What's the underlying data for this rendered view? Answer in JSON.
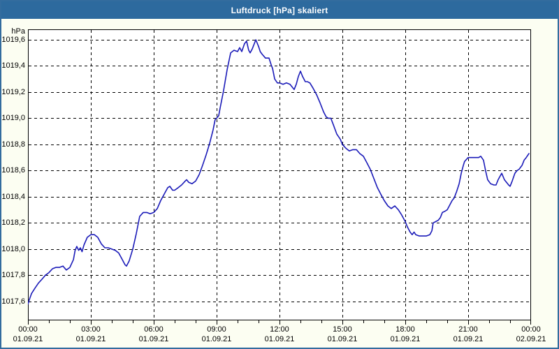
{
  "window": {
    "title": "Luftdruck [hPa] skaliert"
  },
  "colors": {
    "titlebar_bg": "#2D6A9E",
    "titlebar_text": "#FFFFFF",
    "window_border": "#336C9E",
    "content_bg": "#FCFEF2",
    "plot_bg": "#FFFFFF",
    "grid": "#000000",
    "axis": "#000000",
    "line": "#1A1AB8",
    "label_text": "#000000"
  },
  "chart_data": {
    "type": "line",
    "title": "Luftdruck [hPa] skaliert",
    "y_unit": "hPa",
    "grid": "dashed",
    "legend": "none",
    "y_range": [
      1017.455,
      1019.68
    ],
    "x_range_hours": [
      0,
      24
    ],
    "x_minor_tick_every_hours": 1,
    "y_ticks": [
      {
        "value": 1019.6,
        "label": "1019,6"
      },
      {
        "value": 1019.4,
        "label": "1019,4"
      },
      {
        "value": 1019.2,
        "label": "1019,2"
      },
      {
        "value": 1019.0,
        "label": "1019,0"
      },
      {
        "value": 1018.8,
        "label": "1018,8"
      },
      {
        "value": 1018.6,
        "label": "1018,6"
      },
      {
        "value": 1018.4,
        "label": "1018,4"
      },
      {
        "value": 1018.2,
        "label": "1018,2"
      },
      {
        "value": 1018.0,
        "label": "1018,0"
      },
      {
        "value": 1017.8,
        "label": "1017,8"
      },
      {
        "value": 1017.6,
        "label": "1017,6"
      }
    ],
    "x_ticks": [
      {
        "hour": 0,
        "time": "00:00",
        "date": "01.09.21"
      },
      {
        "hour": 3,
        "time": "03:00",
        "date": "01.09.21"
      },
      {
        "hour": 6,
        "time": "06:00",
        "date": "01.09.21"
      },
      {
        "hour": 9,
        "time": "09:00",
        "date": "01.09.21"
      },
      {
        "hour": 12,
        "time": "12:00",
        "date": "01.09.21"
      },
      {
        "hour": 15,
        "time": "15:00",
        "date": "01.09.21"
      },
      {
        "hour": 18,
        "time": "18:00",
        "date": "01.09.21"
      },
      {
        "hour": 21,
        "time": "21:00",
        "date": "01.09.21"
      },
      {
        "hour": 24,
        "time": "00:00",
        "date": "02.09.21"
      }
    ],
    "series": [
      {
        "name": "Luftdruck",
        "points": [
          [
            0.0,
            1017.58
          ],
          [
            0.08,
            1017.62
          ],
          [
            0.17,
            1017.66
          ],
          [
            0.33,
            1017.7
          ],
          [
            0.5,
            1017.74
          ],
          [
            0.67,
            1017.77
          ],
          [
            0.83,
            1017.8
          ],
          [
            1.0,
            1017.82
          ],
          [
            1.17,
            1017.85
          ],
          [
            1.33,
            1017.86
          ],
          [
            1.5,
            1017.86
          ],
          [
            1.67,
            1017.87
          ],
          [
            1.83,
            1017.84
          ],
          [
            2.0,
            1017.86
          ],
          [
            2.17,
            1017.92
          ],
          [
            2.25,
            1017.99
          ],
          [
            2.33,
            1018.02
          ],
          [
            2.42,
            1017.99
          ],
          [
            2.5,
            1018.01
          ],
          [
            2.58,
            1017.98
          ],
          [
            2.67,
            1018.03
          ],
          [
            2.83,
            1018.09
          ],
          [
            3.0,
            1018.11
          ],
          [
            3.17,
            1018.11
          ],
          [
            3.33,
            1018.09
          ],
          [
            3.5,
            1018.04
          ],
          [
            3.67,
            1018.01
          ],
          [
            3.83,
            1018.01
          ],
          [
            4.0,
            1018.0
          ],
          [
            4.17,
            1017.99
          ],
          [
            4.33,
            1017.97
          ],
          [
            4.5,
            1017.92
          ],
          [
            4.63,
            1017.88
          ],
          [
            4.7,
            1017.87
          ],
          [
            4.83,
            1017.91
          ],
          [
            5.0,
            1018.0
          ],
          [
            5.17,
            1018.12
          ],
          [
            5.33,
            1018.25
          ],
          [
            5.5,
            1018.28
          ],
          [
            5.67,
            1018.28
          ],
          [
            5.83,
            1018.27
          ],
          [
            6.0,
            1018.28
          ],
          [
            6.17,
            1018.31
          ],
          [
            6.33,
            1018.37
          ],
          [
            6.5,
            1018.42
          ],
          [
            6.67,
            1018.47
          ],
          [
            6.77,
            1018.48
          ],
          [
            6.9,
            1018.45
          ],
          [
            7.0,
            1018.45
          ],
          [
            7.17,
            1018.47
          ],
          [
            7.33,
            1018.49
          ],
          [
            7.5,
            1018.52
          ],
          [
            7.57,
            1018.53
          ],
          [
            7.67,
            1018.51
          ],
          [
            7.83,
            1018.5
          ],
          [
            8.0,
            1018.52
          ],
          [
            8.17,
            1018.57
          ],
          [
            8.33,
            1018.64
          ],
          [
            8.5,
            1018.72
          ],
          [
            8.67,
            1018.81
          ],
          [
            8.83,
            1018.91
          ],
          [
            8.93,
            1018.99
          ],
          [
            9.0,
            1019.0
          ],
          [
            9.1,
            1019.02
          ],
          [
            9.17,
            1019.08
          ],
          [
            9.33,
            1019.21
          ],
          [
            9.5,
            1019.37
          ],
          [
            9.67,
            1019.5
          ],
          [
            9.83,
            1019.52
          ],
          [
            10.0,
            1019.51
          ],
          [
            10.1,
            1019.54
          ],
          [
            10.2,
            1019.51
          ],
          [
            10.33,
            1019.57
          ],
          [
            10.43,
            1019.59
          ],
          [
            10.53,
            1019.52
          ],
          [
            10.6,
            1019.5
          ],
          [
            10.7,
            1019.53
          ],
          [
            10.87,
            1019.6
          ],
          [
            11.0,
            1019.55
          ],
          [
            11.08,
            1019.51
          ],
          [
            11.17,
            1019.49
          ],
          [
            11.33,
            1019.46
          ],
          [
            11.5,
            1019.46
          ],
          [
            11.6,
            1019.41
          ],
          [
            11.67,
            1019.38
          ],
          [
            11.77,
            1019.3
          ],
          [
            11.9,
            1019.27
          ],
          [
            12.0,
            1019.27
          ],
          [
            12.17,
            1019.26
          ],
          [
            12.33,
            1019.27
          ],
          [
            12.5,
            1019.26
          ],
          [
            12.6,
            1019.24
          ],
          [
            12.7,
            1019.22
          ],
          [
            12.8,
            1019.26
          ],
          [
            12.9,
            1019.32
          ],
          [
            13.0,
            1019.36
          ],
          [
            13.1,
            1019.32
          ],
          [
            13.23,
            1019.28
          ],
          [
            13.33,
            1019.28
          ],
          [
            13.45,
            1019.27
          ],
          [
            13.6,
            1019.23
          ],
          [
            13.77,
            1019.18
          ],
          [
            13.93,
            1019.12
          ],
          [
            14.1,
            1019.05
          ],
          [
            14.23,
            1019.01
          ],
          [
            14.33,
            1019.0
          ],
          [
            14.45,
            1019.0
          ],
          [
            14.57,
            1018.95
          ],
          [
            14.73,
            1018.88
          ],
          [
            14.9,
            1018.84
          ],
          [
            15.0,
            1018.8
          ],
          [
            15.17,
            1018.77
          ],
          [
            15.33,
            1018.75
          ],
          [
            15.5,
            1018.76
          ],
          [
            15.67,
            1018.76
          ],
          [
            15.83,
            1018.73
          ],
          [
            16.0,
            1018.71
          ],
          [
            16.17,
            1018.66
          ],
          [
            16.33,
            1018.61
          ],
          [
            16.5,
            1018.54
          ],
          [
            16.67,
            1018.47
          ],
          [
            16.83,
            1018.42
          ],
          [
            17.0,
            1018.37
          ],
          [
            17.17,
            1018.33
          ],
          [
            17.33,
            1018.31
          ],
          [
            17.5,
            1018.33
          ],
          [
            17.67,
            1018.3
          ],
          [
            17.83,
            1018.26
          ],
          [
            18.0,
            1018.21
          ],
          [
            18.1,
            1018.17
          ],
          [
            18.23,
            1018.13
          ],
          [
            18.33,
            1018.11
          ],
          [
            18.42,
            1018.13
          ],
          [
            18.5,
            1018.11
          ],
          [
            18.67,
            1018.1
          ],
          [
            18.83,
            1018.1
          ],
          [
            19.0,
            1018.1
          ],
          [
            19.17,
            1018.11
          ],
          [
            19.27,
            1018.14
          ],
          [
            19.33,
            1018.2
          ],
          [
            19.45,
            1018.21
          ],
          [
            19.57,
            1018.22
          ],
          [
            19.67,
            1018.24
          ],
          [
            19.77,
            1018.28
          ],
          [
            19.9,
            1018.29
          ],
          [
            20.0,
            1018.3
          ],
          [
            20.1,
            1018.33
          ],
          [
            20.23,
            1018.37
          ],
          [
            20.33,
            1018.39
          ],
          [
            20.45,
            1018.44
          ],
          [
            20.57,
            1018.5
          ],
          [
            20.67,
            1018.58
          ],
          [
            20.77,
            1018.64
          ],
          [
            20.83,
            1018.67
          ],
          [
            21.0,
            1018.7
          ],
          [
            21.17,
            1018.7
          ],
          [
            21.33,
            1018.7
          ],
          [
            21.5,
            1018.7
          ],
          [
            21.6,
            1018.71
          ],
          [
            21.73,
            1018.68
          ],
          [
            21.83,
            1018.6
          ],
          [
            21.93,
            1018.53
          ],
          [
            22.07,
            1018.5
          ],
          [
            22.23,
            1018.49
          ],
          [
            22.33,
            1018.49
          ],
          [
            22.43,
            1018.53
          ],
          [
            22.6,
            1018.58
          ],
          [
            22.73,
            1018.53
          ],
          [
            22.83,
            1018.51
          ],
          [
            22.93,
            1018.49
          ],
          [
            23.0,
            1018.48
          ],
          [
            23.1,
            1018.52
          ],
          [
            23.23,
            1018.58
          ],
          [
            23.33,
            1018.6
          ],
          [
            23.43,
            1018.61
          ],
          [
            23.57,
            1018.64
          ],
          [
            23.67,
            1018.68
          ],
          [
            23.77,
            1018.7
          ],
          [
            23.9,
            1018.73
          ]
        ]
      }
    ]
  }
}
